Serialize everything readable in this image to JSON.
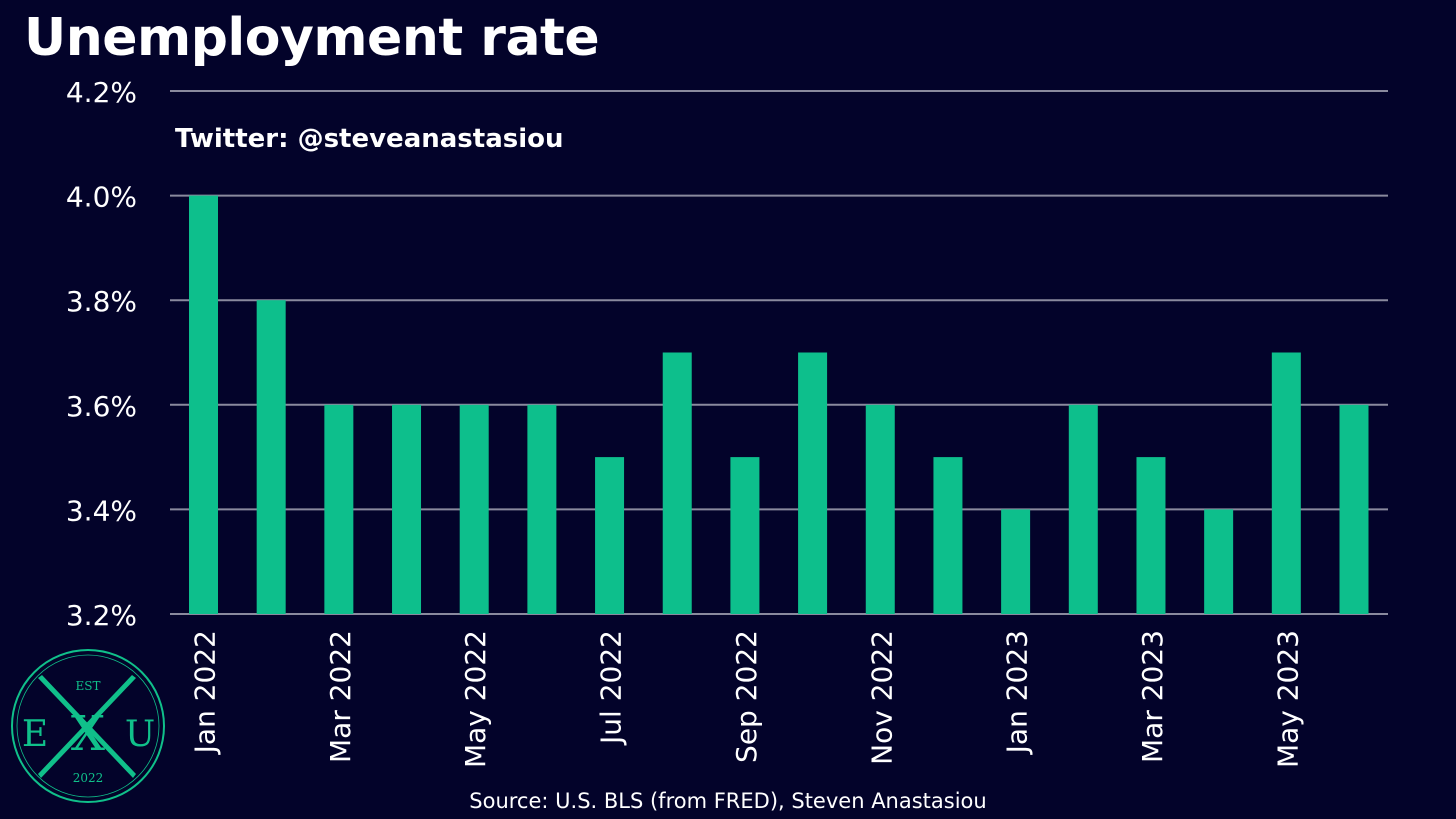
{
  "title": "Unemployment rate",
  "watermark": "Twitter: @steveanastasiou",
  "source": "Source: U.S. BLS (from FRED), Steven Anastasiou",
  "logo": {
    "top_text": "EST",
    "left_letter": "E",
    "center_letter": "X",
    "right_letter": "U",
    "year": "2022",
    "color": "#10c08a"
  },
  "colors": {
    "background": "#03032a",
    "bar": "#0dbf8c",
    "grid": "#8a8a9e",
    "text": "#ffffff"
  },
  "chart_data": {
    "type": "bar",
    "title": "Unemployment rate",
    "categories": [
      "Jan 2022",
      "Feb 2022",
      "Mar 2022",
      "Apr 2022",
      "May 2022",
      "Jun 2022",
      "Jul 2022",
      "Aug 2022",
      "Sep 2022",
      "Oct 2022",
      "Nov 2022",
      "Dec 2022",
      "Jan 2023",
      "Feb 2023",
      "Mar 2023",
      "Apr 2023",
      "May 2023",
      "Jun 2023"
    ],
    "values": [
      4.0,
      3.8,
      3.6,
      3.6,
      3.6,
      3.6,
      3.5,
      3.7,
      3.5,
      3.7,
      3.6,
      3.5,
      3.4,
      3.6,
      3.5,
      3.4,
      3.7,
      3.6
    ],
    "x_tick_labels": [
      "Jan 2022",
      "",
      "Mar 2022",
      "",
      "May 2022",
      "",
      "Jul 2022",
      "",
      "Sep 2022",
      "",
      "Nov 2022",
      "",
      "Jan 2023",
      "",
      "Mar 2023",
      "",
      "May 2023",
      ""
    ],
    "y_ticks": [
      3.2,
      3.4,
      3.6,
      3.8,
      4.0,
      4.2
    ],
    "y_tick_labels": [
      "3.2%",
      "3.4%",
      "3.6%",
      "3.8%",
      "4.0%",
      "4.2%"
    ],
    "ylim": [
      3.2,
      4.2
    ],
    "xlabel": "",
    "ylabel": "",
    "grid": true,
    "legend": "none"
  }
}
